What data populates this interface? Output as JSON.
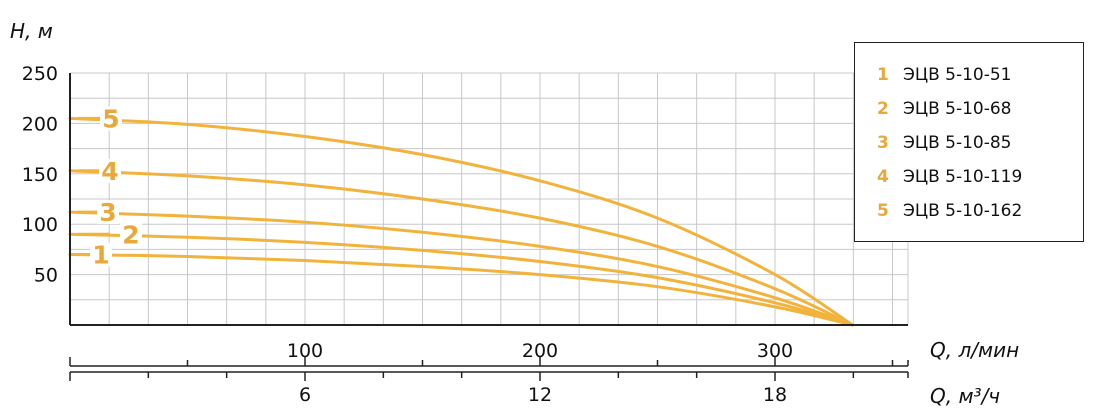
{
  "chart_data": {
    "type": "line",
    "ylabel": "H, м",
    "xlabel": "Q, л/мин",
    "xlabel2": "Q, м³/ч",
    "ylim": [
      0,
      250
    ],
    "xlim": [
      0,
      333
    ],
    "yticks": [
      50,
      100,
      150,
      200,
      250
    ],
    "xticks_lmin": [
      100,
      200,
      300
    ],
    "xticks_m3h": [
      6,
      12,
      18
    ],
    "grid": true,
    "legend_position": "top-right",
    "series": [
      {
        "name": "ЭЦВ 5-10-51",
        "marker": "1",
        "shutoff_head": 70,
        "x": [
          0,
          50,
          100,
          150,
          200,
          250,
          300,
          333
        ],
        "y": [
          70,
          68,
          64,
          58,
          50,
          38,
          18,
          0
        ]
      },
      {
        "name": "ЭЦВ 5-10-68",
        "marker": "2",
        "shutoff_head": 90,
        "x": [
          0,
          50,
          100,
          150,
          200,
          250,
          300,
          333
        ],
        "y": [
          90,
          87,
          82,
          74,
          63,
          47,
          22,
          0
        ]
      },
      {
        "name": "ЭЦВ 5-10-85",
        "marker": "3",
        "shutoff_head": 112,
        "x": [
          0,
          50,
          100,
          150,
          200,
          250,
          300,
          333
        ],
        "y": [
          112,
          108,
          102,
          92,
          78,
          58,
          27,
          0
        ]
      },
      {
        "name": "ЭЦВ 5-10-119",
        "marker": "4",
        "shutoff_head": 153,
        "x": [
          0,
          50,
          100,
          150,
          200,
          250,
          300,
          333
        ],
        "y": [
          153,
          148,
          139,
          125,
          106,
          78,
          36,
          0
        ]
      },
      {
        "name": "ЭЦВ 5-10-162",
        "marker": "5",
        "shutoff_head": 205,
        "x": [
          0,
          50,
          100,
          150,
          200,
          250,
          300,
          333
        ],
        "y": [
          205,
          199,
          187,
          169,
          143,
          106,
          50,
          0
        ]
      }
    ]
  },
  "colors": {
    "curve": "#F2B33D",
    "marker": "#E9A93A",
    "grid": "#c8c8c8",
    "axis": "#222222"
  }
}
